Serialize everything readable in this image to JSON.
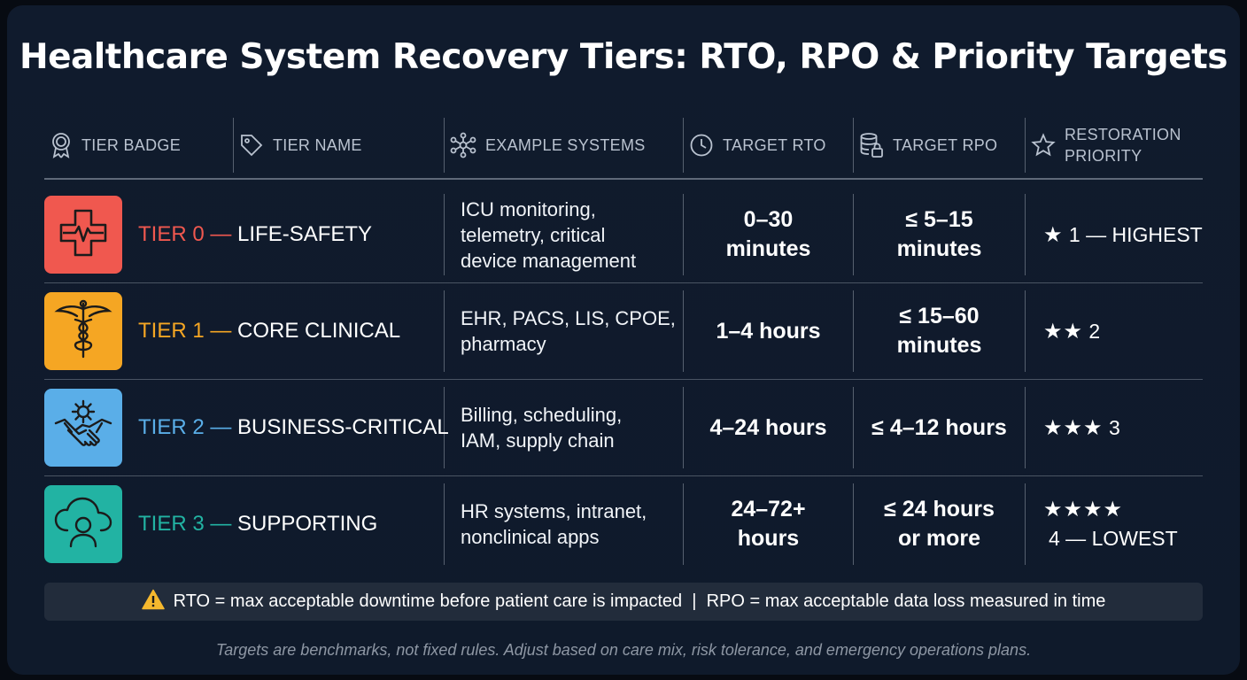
{
  "title": "Healthcare System Recovery Tiers: RTO, RPO & Priority Targets",
  "headers": {
    "badge": "TIER BADGE",
    "name": "TIER NAME",
    "systems": "EXAMPLE SYSTEMS",
    "rto": "TARGET RTO",
    "rpo": "TARGET RPO",
    "priority_line1": "RESTORATION",
    "priority_line2": "PRIORITY"
  },
  "rows": [
    {
      "tier": "TIER 0",
      "dash": " — ",
      "name": "LIFE-SAFETY",
      "color": "#f0584f",
      "icon": "heart-pulse-cross-icon",
      "systems": [
        "ICU monitoring,",
        "telemetry, critical",
        "device management"
      ],
      "rto": [
        "0–30",
        "minutes"
      ],
      "rpo": [
        "≤ 5–15",
        "minutes"
      ],
      "stars": "★",
      "priority": "1 — HIGHEST"
    },
    {
      "tier": "TIER 1",
      "dash": " — ",
      "name": "CORE CLINICAL",
      "color": "#f5a623",
      "icon": "caduceus-icon",
      "systems": [
        "EHR, PACS, LIS, CPOE,",
        "pharmacy"
      ],
      "rto": [
        "1–4 hours"
      ],
      "rpo": [
        "≤ 15–60",
        "minutes"
      ],
      "stars": "★★",
      "priority": "2"
    },
    {
      "tier": "TIER 2",
      "dash": " — ",
      "name": "BUSINESS-CRITICAL",
      "color": "#5aaee8",
      "icon": "handshake-gear-icon",
      "systems": [
        "Billing, scheduling,",
        "IAM, supply chain"
      ],
      "rto": [
        "4–24 hours"
      ],
      "rpo": [
        "≤ 4–12 hours"
      ],
      "stars": "★★★",
      "priority": "3"
    },
    {
      "tier": "TIER 3",
      "dash": " — ",
      "name": "SUPPORTING",
      "color": "#22b3a3",
      "icon": "cloud-user-icon",
      "systems": [
        "HR systems, intranet,",
        "nonclinical apps"
      ],
      "rto": [
        "24–72+",
        "hours"
      ],
      "rpo": [
        "≤ 24 hours",
        "or more"
      ],
      "stars": "★★★★",
      "priority": "4 — LOWEST"
    }
  ],
  "note": "RTO = max acceptable downtime before patient care is impacted  |  RPO = max acceptable data loss measured in time",
  "footer": "Targets are benchmarks, not fixed rules. Adjust based on care mix, risk tolerance, and emergency operations plans."
}
